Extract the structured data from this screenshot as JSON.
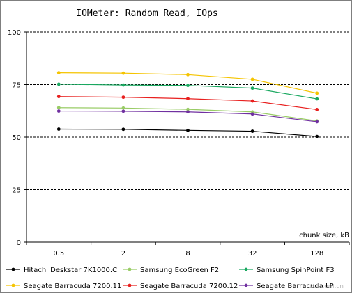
{
  "chart_data": {
    "type": "line",
    "title": "IOMeter: Random  Read, IOps",
    "xlabel": "chunk size, kB",
    "ylabel": "",
    "categories": [
      "0.5",
      "2",
      "8",
      "32",
      "128"
    ],
    "ylim": [
      0,
      100
    ],
    "yticks": [
      "0",
      "25",
      "50",
      "75",
      "100"
    ],
    "grid": "horizontal dashed",
    "legend_position": "bottom",
    "series": [
      {
        "name": "Hitachi Deskstar 7K1000.C",
        "color": "#000000",
        "values": [
          53.8,
          53.7,
          53.2,
          52.8,
          50.3
        ]
      },
      {
        "name": "Samsung EcoGreen F2",
        "color": "#99cc66",
        "values": [
          64.0,
          63.8,
          63.2,
          62.0,
          57.7
        ]
      },
      {
        "name": "Samsung SpinPoint F3",
        "color": "#1aa860",
        "values": [
          75.2,
          74.8,
          74.6,
          73.3,
          68.2
        ]
      },
      {
        "name": "Seagate Barracuda 7200.11",
        "color": "#f5c400",
        "values": [
          80.6,
          80.4,
          79.7,
          77.5,
          70.9
        ]
      },
      {
        "name": "Seagate Barracuda 7200.12",
        "color": "#e8201f",
        "values": [
          69.3,
          69.0,
          68.3,
          67.2,
          63.1
        ]
      },
      {
        "name": "Seagate Barracuda LP",
        "color": "#7030a0",
        "values": [
          62.4,
          62.3,
          62.0,
          61.0,
          57.3
        ]
      }
    ]
  },
  "watermark": "zol.com.cn"
}
